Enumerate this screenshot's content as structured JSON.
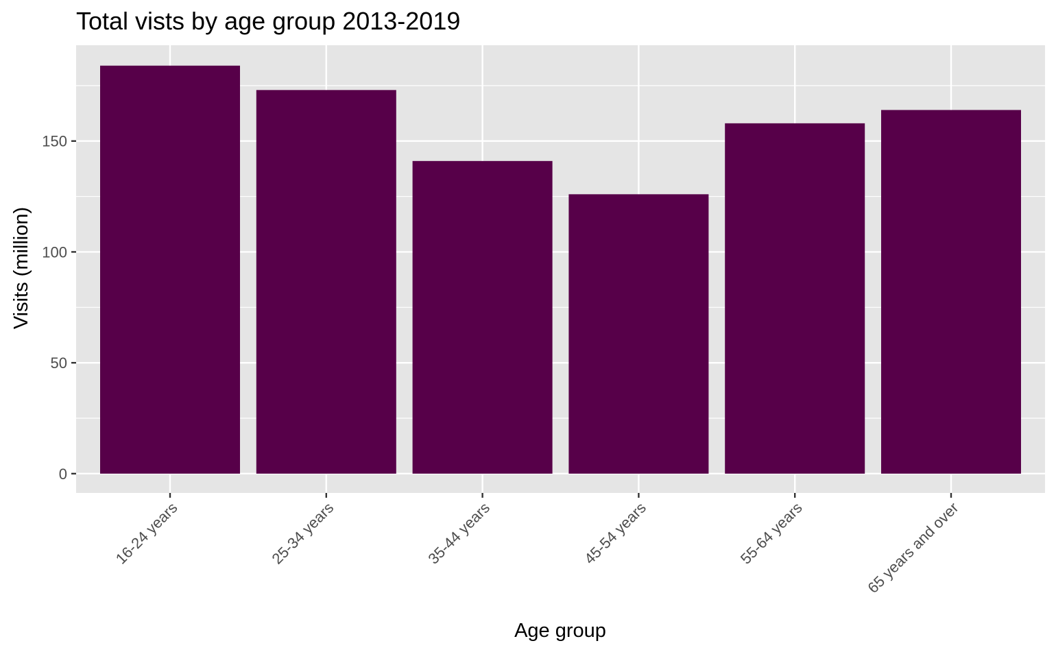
{
  "chart_data": {
    "type": "bar",
    "title": "Total vists by age group 2013-2019",
    "xlabel": "Age group",
    "ylabel": "Visits (million)",
    "categories": [
      "16-24 years",
      "25-34 years",
      "35-44 years",
      "45-54 years",
      "55-64 years",
      "65 years and over"
    ],
    "values": [
      184,
      173,
      141,
      126,
      158,
      164
    ],
    "ylim": [
      -8.7,
      193.2
    ],
    "yticks": [
      0,
      50,
      100,
      150
    ],
    "ytick_labels": [
      "0",
      "50",
      "100",
      "150"
    ],
    "grid": true,
    "bar_color": "#570049",
    "panel_background": "#e5e5e5",
    "grid_color": "#ffffff"
  }
}
